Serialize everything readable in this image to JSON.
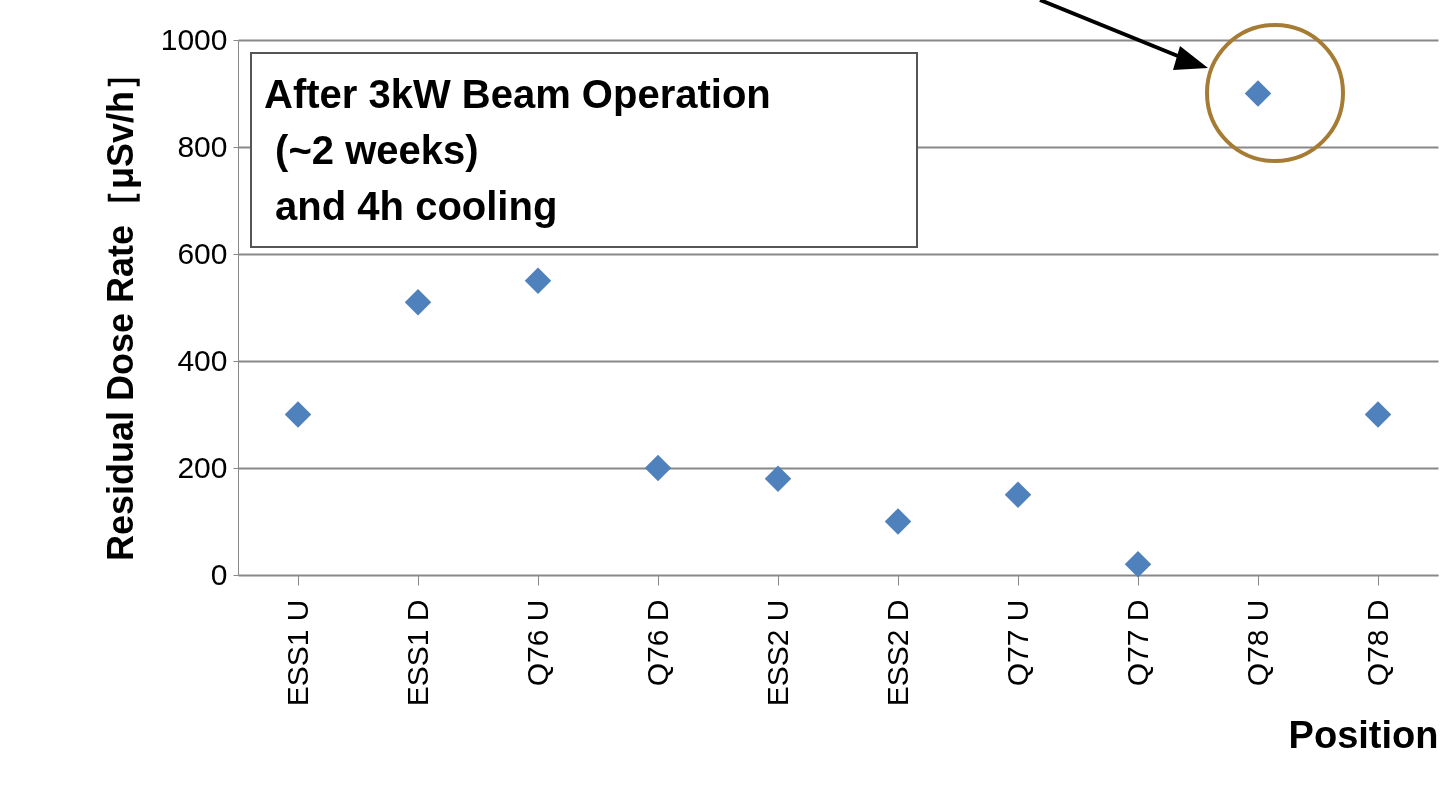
{
  "chart_data": {
    "type": "scatter",
    "ylabel": "Residual Dose Rate［μSv/h］",
    "xlabel": "Position",
    "categories": [
      "ESS1 U",
      "ESS1 D",
      "Q76 U",
      "Q76 D",
      "ESS2 U",
      "ESS2 D",
      "Q77 U",
      "Q77 D",
      "Q78 U",
      "Q78 D"
    ],
    "values": [
      300,
      510,
      550,
      200,
      180,
      100,
      150,
      20,
      900,
      300
    ],
    "color": "#4f81bd",
    "marker": "diamond",
    "ylim": [
      0,
      1000
    ],
    "yticks": [
      0,
      200,
      400,
      600,
      800,
      1000
    ],
    "grid": "y",
    "annotations": [
      "After 3kW Beam Operation\n (~2 weeks)\n and 4h cooling"
    ]
  }
}
